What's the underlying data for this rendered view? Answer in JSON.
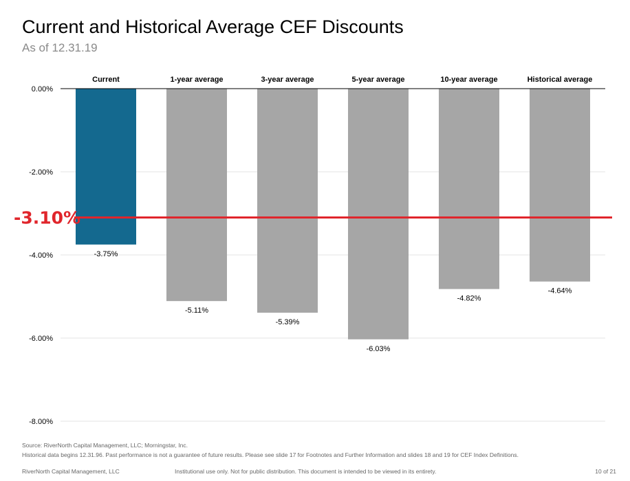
{
  "title": "Current and Historical Average CEF Discounts",
  "subtitle": "As of 12.31.19",
  "chart_data": {
    "type": "bar",
    "categories": [
      "Current",
      "1-year average",
      "3-year average",
      "5-year average",
      "10-year average",
      "Historical average"
    ],
    "values": [
      -3.75,
      -5.11,
      -5.39,
      -6.03,
      -4.82,
      -4.64
    ],
    "data_labels": [
      "-3.75%",
      "-5.11%",
      "-5.39%",
      "-6.03%",
      "-4.82%",
      "-4.64%"
    ],
    "ylim": [
      -8,
      0
    ],
    "yticks": [
      0,
      -2,
      -4,
      -6,
      -8
    ],
    "ytick_labels": [
      "0.00%",
      "-2.00%",
      "-4.00%",
      "-6.00%",
      "-8.00%"
    ],
    "grid": true,
    "colors": {
      "highlight": "#14698f",
      "default": "#a6a6a6",
      "reference_line": "#e0252b"
    },
    "reference_line": {
      "value": -3.1,
      "label": "-3.10%"
    }
  },
  "footer": {
    "source": "Source: RiverNorth Capital Management, LLC; Morningstar, Inc.",
    "historical_note": "Historical data begins 12.31.96. Past performance is not a guarantee of future results. Please see slide 17 for Footnotes and Further Information and slides 18 and 19 for CEF Index Definitions.",
    "company": "RiverNorth Capital Management, LLC",
    "disclaimer": "Institutional use only. Not for public distribution. This document is intended to be viewed in its entirety.",
    "page": "10 of 21"
  }
}
